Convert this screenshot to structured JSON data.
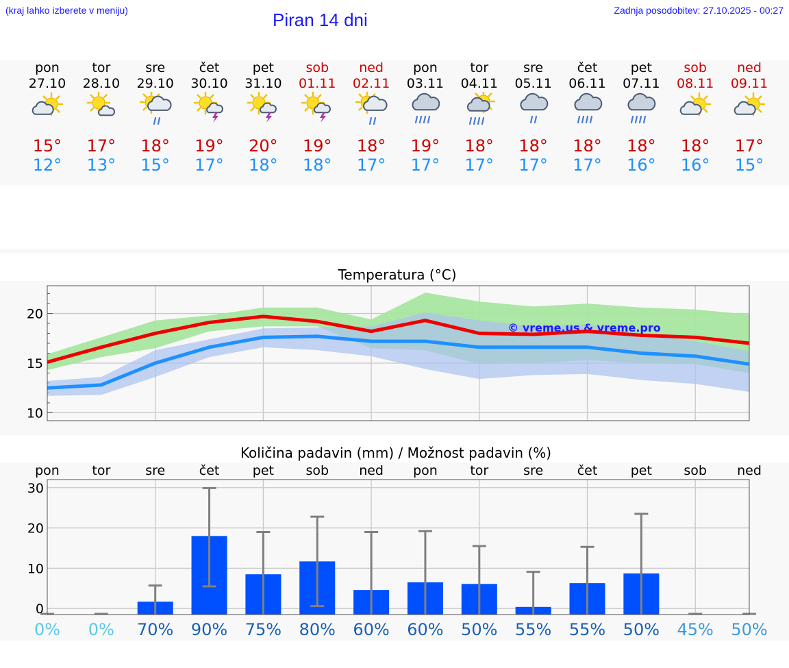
{
  "header": {
    "location_hint": "(kraj lahko izberete v meniju)",
    "title": "Piran 14 dni",
    "updated": "Zadnja posodobitev: 27.10.2025 - 00:27"
  },
  "days": [
    {
      "name": "pon",
      "date": "27.10",
      "weekend": false,
      "icon": "partly-cloudy-icon",
      "tmax": "15°",
      "tmin": "12°"
    },
    {
      "name": "tor",
      "date": "28.10",
      "weekend": false,
      "icon": "sun-small-cloud-icon",
      "tmax": "17°",
      "tmin": "13°"
    },
    {
      "name": "sre",
      "date": "29.10",
      "weekend": false,
      "icon": "sun-cloud-rain-icon",
      "tmax": "18°",
      "tmin": "15°"
    },
    {
      "name": "čet",
      "date": "30.10",
      "weekend": false,
      "icon": "sun-thunderstorm-icon",
      "tmax": "19°",
      "tmin": "17°"
    },
    {
      "name": "pet",
      "date": "31.10",
      "weekend": false,
      "icon": "sun-thunderstorm-icon",
      "tmax": "20°",
      "tmin": "18°"
    },
    {
      "name": "sob",
      "date": "01.11",
      "weekend": true,
      "icon": "sun-thunderstorm-icon",
      "tmax": "19°",
      "tmin": "18°"
    },
    {
      "name": "ned",
      "date": "02.11",
      "weekend": true,
      "icon": "sun-cloud-rain-icon",
      "tmax": "18°",
      "tmin": "17°"
    },
    {
      "name": "pon",
      "date": "03.11",
      "weekend": false,
      "icon": "cloud-heavy-rain-icon",
      "tmax": "19°",
      "tmin": "17°"
    },
    {
      "name": "tor",
      "date": "04.11",
      "weekend": false,
      "icon": "sun-cloud-heavy-rain-icon",
      "tmax": "18°",
      "tmin": "17°"
    },
    {
      "name": "sre",
      "date": "05.11",
      "weekend": false,
      "icon": "cloud-rain-icon",
      "tmax": "18°",
      "tmin": "17°"
    },
    {
      "name": "čet",
      "date": "06.11",
      "weekend": false,
      "icon": "cloud-heavy-rain-icon",
      "tmax": "18°",
      "tmin": "17°"
    },
    {
      "name": "pet",
      "date": "07.11",
      "weekend": false,
      "icon": "cloud-heavy-rain-icon",
      "tmax": "18°",
      "tmin": "16°"
    },
    {
      "name": "sob",
      "date": "08.11",
      "weekend": true,
      "icon": "partly-cloudy-icon",
      "tmax": "18°",
      "tmin": "16°"
    },
    {
      "name": "ned",
      "date": "09.11",
      "weekend": true,
      "icon": "partly-cloudy-icon",
      "tmax": "17°",
      "tmin": "15°"
    }
  ],
  "colors": {
    "max_line": "#ee0000",
    "min_line": "#1e90ff",
    "max_band": "#a8e6a0",
    "min_band": "#a9c2f0",
    "bar": "#0050ff",
    "errbar": "#808080",
    "weekend_text": "#cc0000",
    "max_text": "#cc0000",
    "min_text": "#1e90ff"
  },
  "chart_data": [
    {
      "type": "line",
      "title": "Temperatura (°C)",
      "watermark": "© vreme.us & vreme.pro",
      "ylim": [
        9.2,
        22.8
      ],
      "yticks": [
        10,
        15,
        20
      ],
      "grid": true,
      "x": [
        "27.10",
        "28.10",
        "29.10",
        "30.10",
        "31.10",
        "01.11",
        "02.11",
        "03.11",
        "04.11",
        "05.11",
        "06.11",
        "07.11",
        "08.11",
        "09.11"
      ],
      "series": [
        {
          "role": "max",
          "values": [
            15.1,
            16.6,
            18.0,
            19.1,
            19.7,
            19.2,
            18.2,
            19.3,
            18.0,
            17.9,
            18.2,
            17.8,
            17.6,
            17.0
          ],
          "band_low": [
            14.3,
            15.6,
            16.5,
            18.2,
            18.7,
            18.7,
            16.5,
            16.3,
            14.9,
            15.0,
            15.3,
            15.0,
            14.9,
            14.0
          ],
          "band_high": [
            15.9,
            17.6,
            19.3,
            19.8,
            20.6,
            20.6,
            19.4,
            22.1,
            21.2,
            20.7,
            21.0,
            20.6,
            20.4,
            19.9
          ]
        },
        {
          "role": "min",
          "values": [
            12.5,
            12.8,
            15.0,
            16.6,
            17.6,
            17.7,
            17.2,
            17.2,
            16.6,
            16.6,
            16.6,
            16.0,
            15.7,
            14.9
          ],
          "band_low": [
            11.7,
            11.8,
            13.6,
            15.6,
            16.6,
            16.3,
            15.7,
            14.4,
            13.4,
            13.8,
            13.9,
            13.3,
            12.9,
            12.1
          ],
          "band_high": [
            13.2,
            13.6,
            16.3,
            17.4,
            18.5,
            18.6,
            18.7,
            20.1,
            19.3,
            18.7,
            18.9,
            18.0,
            17.2,
            16.2
          ]
        }
      ]
    },
    {
      "type": "bar",
      "title": "Količina padavin (mm) / Možnost padavin (%)",
      "ylim": [
        -1.5,
        32
      ],
      "yticks": [
        0,
        10,
        20,
        30
      ],
      "grid": true,
      "categories": [
        "pon",
        "tor",
        "sre",
        "čet",
        "pet",
        "sob",
        "ned",
        "pon",
        "tor",
        "sre",
        "čet",
        "pet",
        "sob",
        "ned"
      ],
      "values": [
        0,
        0,
        1.7,
        18,
        8.5,
        11.7,
        4.6,
        6.5,
        6.1,
        0.4,
        6.3,
        8.7,
        0,
        0
      ],
      "err_low": [
        0,
        0,
        0,
        5.5,
        0,
        0.6,
        0,
        0,
        0,
        0,
        0,
        0,
        0,
        0
      ],
      "err_high": [
        0,
        0,
        5.7,
        29.9,
        19.0,
        22.8,
        19.0,
        19.2,
        15.5,
        9.1,
        15.3,
        23.5,
        0,
        0
      ],
      "probability": [
        "0%",
        "0%",
        "70%",
        "90%",
        "75%",
        "80%",
        "60%",
        "60%",
        "50%",
        "55%",
        "55%",
        "50%",
        "45%",
        "50%"
      ],
      "probability_colors": [
        "#5bc8e8",
        "#5bc8e8",
        "#1a5fb4",
        "#1a5fb4",
        "#1a5fb4",
        "#1a5fb4",
        "#1a5fb4",
        "#1a5fb4",
        "#1a5fb4",
        "#1a5fb4",
        "#1a5fb4",
        "#1a5fb4",
        "#3f9ad8",
        "#3f9ad8"
      ]
    }
  ]
}
